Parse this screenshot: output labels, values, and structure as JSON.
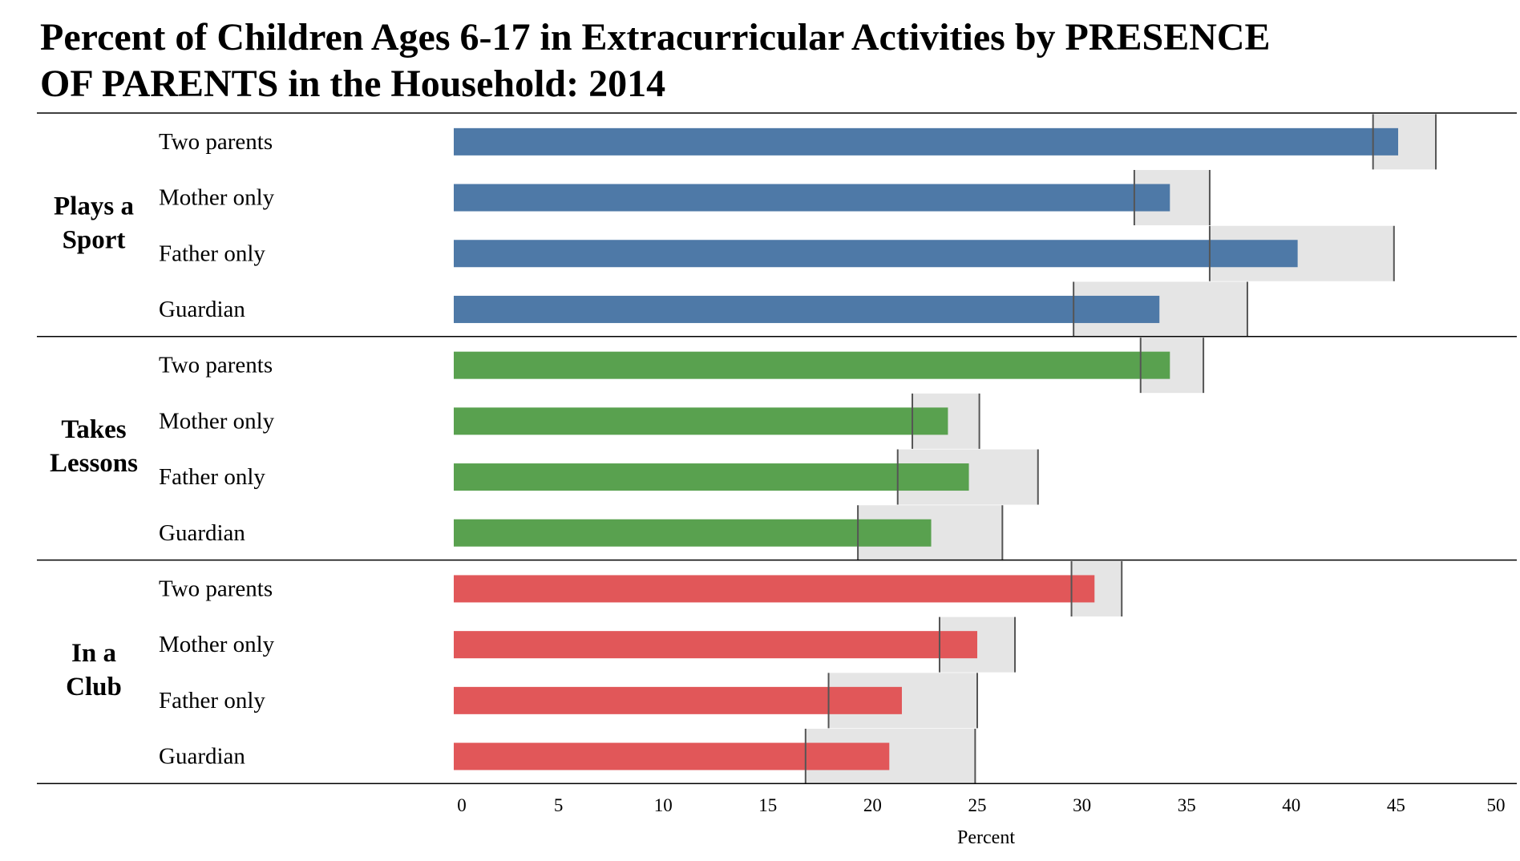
{
  "chart_data": {
    "type": "bar",
    "orientation": "horizontal",
    "title_lines": [
      "Percent of Children Ages 6-17 in Extracurricular Activities by PRESENCE",
      "OF PARENTS in the Household: 2014"
    ],
    "xlabel": "Percent",
    "xlim": [
      0,
      50
    ],
    "xticks": [
      "0",
      "5",
      "10",
      "15",
      "20",
      "25",
      "30",
      "35",
      "40",
      "45",
      "50"
    ],
    "categories": [
      "Two parents",
      "Mother only",
      "Father only",
      "Guardian"
    ],
    "groups": [
      {
        "label_lines": [
          "Plays a",
          "Sport"
        ],
        "color": "#4E79A7",
        "values": [
          45.1,
          34.2,
          40.3,
          33.7
        ],
        "ci": [
          [
            43.9,
            46.9
          ],
          [
            32.5,
            36.1
          ],
          [
            36.1,
            44.9
          ],
          [
            29.6,
            37.9
          ]
        ]
      },
      {
        "label_lines": [
          "Takes",
          "Lessons"
        ],
        "color": "#59A14F",
        "values": [
          34.2,
          23.6,
          24.6,
          22.8
        ],
        "ci": [
          [
            32.8,
            35.8
          ],
          [
            21.9,
            25.1
          ],
          [
            21.2,
            27.9
          ],
          [
            19.3,
            26.2
          ]
        ]
      },
      {
        "label_lines": [
          "In a",
          "Club"
        ],
        "color": "#E15759",
        "values": [
          30.6,
          25.0,
          21.4,
          20.8
        ],
        "ci": [
          [
            29.5,
            31.9
          ],
          [
            23.2,
            26.8
          ],
          [
            17.9,
            25.0
          ],
          [
            16.8,
            24.9
          ]
        ]
      }
    ],
    "ci_color": "#E5E5E5",
    "grid": false,
    "legend": "none"
  }
}
